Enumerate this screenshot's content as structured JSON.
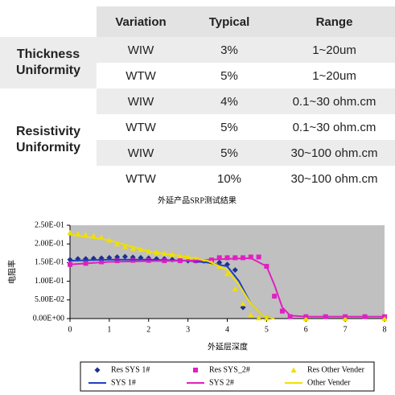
{
  "table": {
    "header": [
      "Variation",
      "Typical",
      "Range"
    ],
    "groups": [
      {
        "label": "Thickness Uniformity",
        "rows": [
          [
            "WIW",
            "3%",
            "1~20um"
          ],
          [
            "WTW",
            "5%",
            "1~20um"
          ]
        ]
      },
      {
        "label": "Resistivity Uniformity",
        "rows": [
          [
            "WIW",
            "4%",
            "0.1~30 ohm.cm"
          ],
          [
            "WTW",
            "5%",
            "0.1~30 ohm.cm"
          ],
          [
            "WIW",
            "5%",
            "30~100 ohm.cm"
          ],
          [
            "WTW",
            "10%",
            "30~100 ohm.cm"
          ]
        ]
      }
    ]
  },
  "chart_data": {
    "type": "scatter",
    "title": "外延产品SRP测试结果",
    "x_label": "外延层深度",
    "y_label": "电阻率",
    "xlim": [
      0,
      8
    ],
    "xticks": [
      0,
      1,
      2,
      3,
      4,
      5,
      6,
      7,
      8
    ],
    "ylim": [
      0,
      0.25
    ],
    "yticks": [
      {
        "value": 0,
        "label": "0.00E+00"
      },
      {
        "value": 0.05,
        "label": "5.00E-02"
      },
      {
        "value": 0.1,
        "label": "1.00E-01"
      },
      {
        "value": 0.15,
        "label": "1.50E-01"
      },
      {
        "value": 0.2,
        "label": "2.00E-01"
      },
      {
        "value": 0.25,
        "label": "2.50E-01"
      }
    ],
    "series": [
      {
        "name": "Res SYS 1#",
        "color": "#1f2f8f",
        "marker": "diamond",
        "x": [
          0,
          0.2,
          0.4,
          0.6,
          0.8,
          1.0,
          1.2,
          1.4,
          1.6,
          1.8,
          2.0,
          2.2,
          2.4,
          2.6,
          2.8,
          3.0,
          3.2,
          3.4,
          3.6,
          3.8,
          4.0,
          4.2,
          4.4
        ],
        "values": [
          0.158,
          0.16,
          0.16,
          0.161,
          0.162,
          0.163,
          0.165,
          0.166,
          0.164,
          0.163,
          0.162,
          0.16,
          0.16,
          0.158,
          0.157,
          0.155,
          0.155,
          0.154,
          0.153,
          0.15,
          0.145,
          0.13,
          0.03
        ]
      },
      {
        "name": "Res SYS_2#",
        "color": "#e020c0",
        "marker": "square",
        "x": [
          0,
          0.4,
          0.8,
          1.2,
          1.6,
          2.0,
          2.4,
          2.8,
          3.2,
          3.6,
          3.8,
          4.0,
          4.2,
          4.4,
          4.6,
          4.8,
          5.0,
          5.2,
          5.4,
          5.6,
          6.0,
          6.5,
          7.0,
          7.5,
          8.0
        ],
        "values": [
          0.145,
          0.148,
          0.152,
          0.155,
          0.156,
          0.156,
          0.155,
          0.155,
          0.155,
          0.157,
          0.163,
          0.163,
          0.163,
          0.163,
          0.165,
          0.165,
          0.14,
          0.06,
          0.02,
          0.005,
          0.005,
          0.005,
          0.005,
          0.005,
          0.005
        ]
      },
      {
        "name": "Res Other Vender",
        "color": "#f0e000",
        "marker": "triangle",
        "x": [
          0,
          0.2,
          0.4,
          0.6,
          0.8,
          1.0,
          1.2,
          1.4,
          1.6,
          1.8,
          2.0,
          2.2,
          2.4,
          2.6,
          2.8,
          3.0,
          3.2,
          3.4,
          3.6,
          3.8,
          4.0,
          4.2,
          4.4,
          4.6,
          4.8,
          5.0,
          6.0,
          7.0,
          8.0
        ],
        "values": [
          0.23,
          0.228,
          0.225,
          0.222,
          0.218,
          0.21,
          0.2,
          0.193,
          0.188,
          0.185,
          0.18,
          0.177,
          0.175,
          0.172,
          0.168,
          0.165,
          0.16,
          0.155,
          0.15,
          0.14,
          0.12,
          0.08,
          0.04,
          0.01,
          0.002,
          0.001,
          0,
          0,
          0
        ]
      },
      {
        "name": "SYS 1#",
        "color": "#2040c0",
        "marker": "line",
        "x": [
          0,
          1,
          2,
          3,
          3.5,
          4,
          4.3,
          4.6,
          4.9,
          5.2
        ],
        "values": [
          0.155,
          0.158,
          0.158,
          0.155,
          0.15,
          0.14,
          0.1,
          0.04,
          0.008,
          0
        ]
      },
      {
        "name": "SYS 2#",
        "color": "#e020c0",
        "marker": "line",
        "x": [
          0,
          1,
          2,
          3,
          4,
          4.6,
          5,
          5.2,
          5.4,
          5.6,
          6,
          8
        ],
        "values": [
          0.145,
          0.152,
          0.154,
          0.155,
          0.16,
          0.162,
          0.14,
          0.09,
          0.03,
          0.008,
          0.005,
          0.005
        ]
      },
      {
        "name": "Other Vender",
        "color": "#f0e000",
        "marker": "line",
        "x": [
          0,
          1,
          2,
          3,
          3.5,
          4,
          4.3,
          4.6,
          4.9,
          5.2
        ],
        "values": [
          0.225,
          0.21,
          0.18,
          0.165,
          0.155,
          0.13,
          0.09,
          0.04,
          0.008,
          0
        ]
      }
    ]
  }
}
